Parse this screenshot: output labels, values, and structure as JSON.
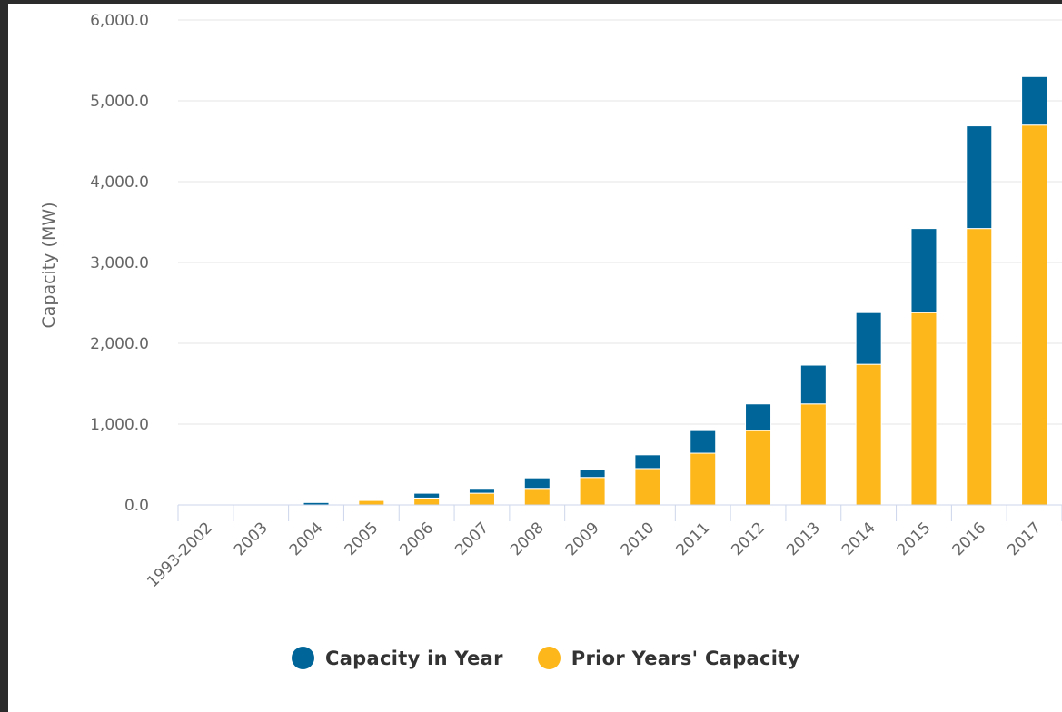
{
  "chart_data": {
    "type": "bar",
    "stacked": true,
    "ylabel": "Capacity (MW)",
    "xlabel": "",
    "ylim": [
      0,
      6000
    ],
    "yticks": [
      0,
      1000,
      2000,
      3000,
      4000,
      5000,
      6000
    ],
    "ytick_labels": [
      "0.0",
      "1,000.0",
      "2,000.0",
      "3,000.0",
      "4,000.0",
      "5,000.0",
      "6,000.0"
    ],
    "grid": true,
    "legend_position": "bottom-center",
    "categories": [
      "1993-2002",
      "2003",
      "2004",
      "2005",
      "2006",
      "2007",
      "2008",
      "2009",
      "2010",
      "2011",
      "2012",
      "2013",
      "2014",
      "2015",
      "2016",
      "2017"
    ],
    "series": [
      {
        "name": "Capacity in Year",
        "color": "#006699",
        "values": [
          0,
          0,
          30,
          0,
          60,
          60,
          130,
          100,
          170,
          280,
          330,
          480,
          640,
          1040,
          1270,
          600
        ]
      },
      {
        "name": "Prior Years' Capacity",
        "color": "#fdb71a",
        "values": [
          0,
          0,
          0,
          55,
          85,
          145,
          205,
          340,
          450,
          640,
          920,
          1250,
          1740,
          2380,
          3420,
          4700
        ]
      }
    ]
  }
}
